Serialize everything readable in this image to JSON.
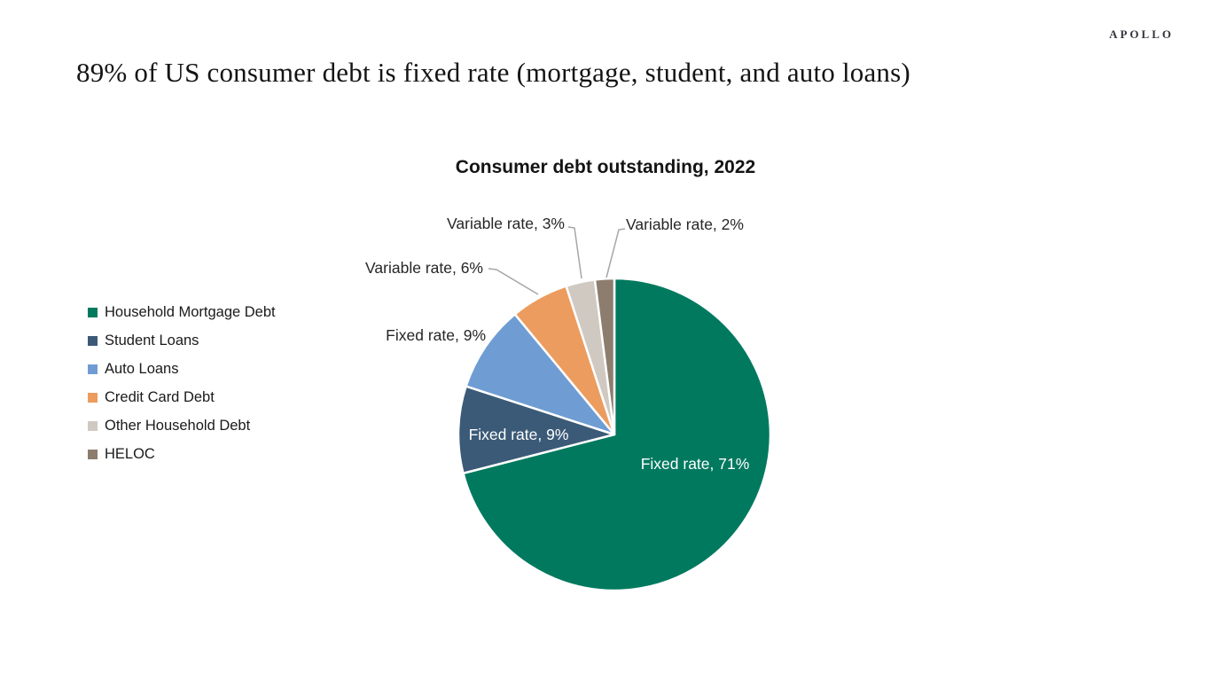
{
  "logo": {
    "text": "APOLLO"
  },
  "headline": "89% of US consumer debt is fixed rate (mortgage, student, and auto loans)",
  "chart_data": {
    "type": "pie",
    "title": "Consumer debt outstanding, 2022",
    "units": "percent",
    "total": 100,
    "start_angle_deg": 0,
    "direction": "clockwise",
    "legend_position": "left",
    "slice_border_color": "#ffffff",
    "leader_line_color": "#a6a6a6",
    "inside_label_color": "#ffffff",
    "outside_label_color": "#262626",
    "slices": [
      {
        "legend": "Household Mortgage Debt",
        "label": "Fixed rate, 71%",
        "rate_type": "Fixed rate",
        "value": 71,
        "color": "#00795f",
        "label_placement": "inside"
      },
      {
        "legend": "Student Loans",
        "label": "Fixed rate, 9%",
        "rate_type": "Fixed rate",
        "value": 9,
        "color": "#3b5a77",
        "label_placement": "inside"
      },
      {
        "legend": "Auto Loans",
        "label": "Fixed rate, 9%",
        "rate_type": "Fixed rate",
        "value": 9,
        "color": "#6f9dd3",
        "label_placement": "outside"
      },
      {
        "legend": "Credit Card Debt",
        "label": "Variable rate, 6%",
        "rate_type": "Variable rate",
        "value": 6,
        "color": "#ec9c5e",
        "label_placement": "outside-leader"
      },
      {
        "legend": "Other Household Debt",
        "label": "Variable rate, 3%",
        "rate_type": "Variable rate",
        "value": 3,
        "color": "#cfc9c1",
        "label_placement": "outside-leader"
      },
      {
        "legend": "HELOC",
        "label": "Variable rate, 2%",
        "rate_type": "Variable rate",
        "value": 2,
        "color": "#8c7d6e",
        "label_placement": "outside-leader"
      }
    ]
  }
}
